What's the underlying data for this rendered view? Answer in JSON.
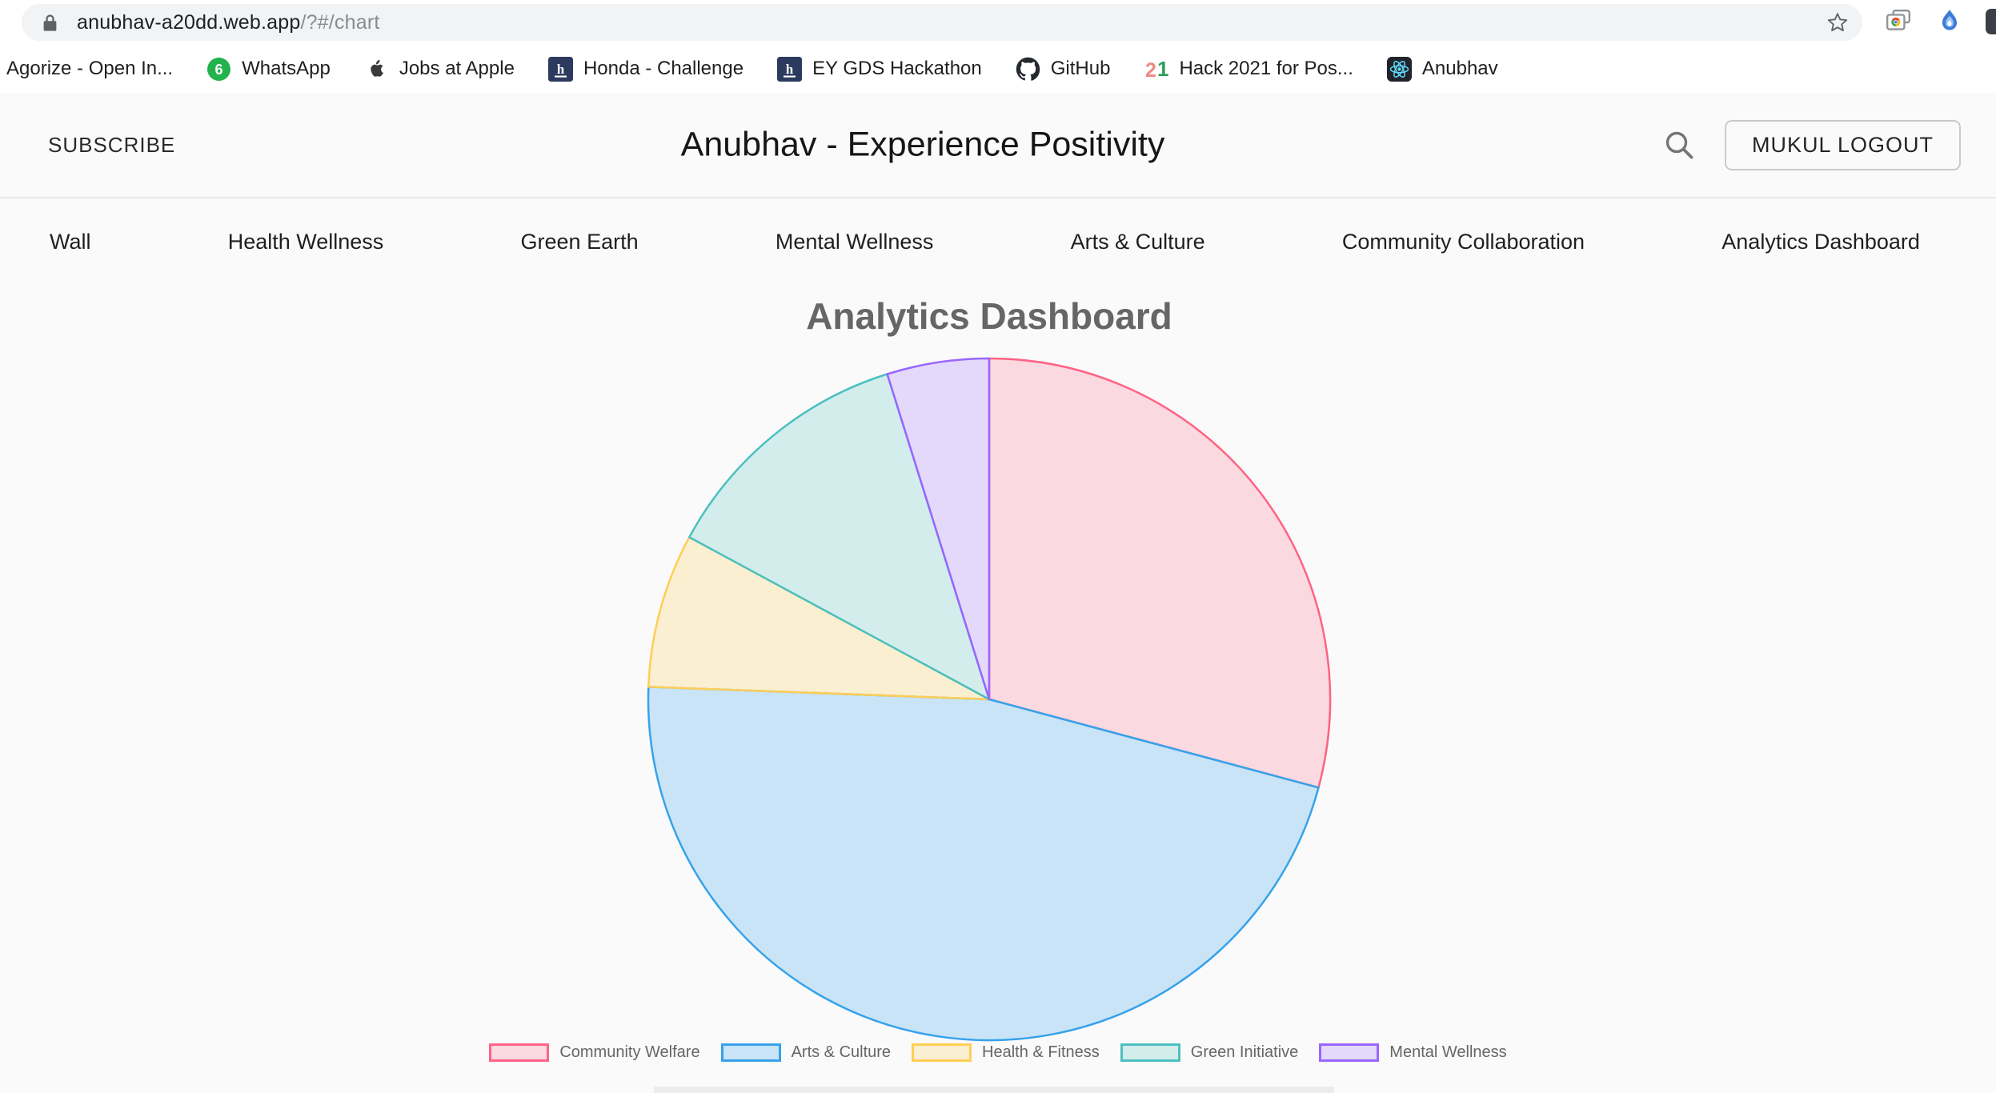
{
  "browser": {
    "url": {
      "host": "anubhav-a20dd.web.app",
      "path": "/?#/chart"
    },
    "omnibox_icons": [
      "lock-icon",
      "bookmark-star-icon"
    ],
    "toolbar_icons": [
      "tab-chrome-icon",
      "extension-flame-icon",
      "edge-partial-icon"
    ],
    "bookmarks": [
      {
        "label": "Agorize - Open In...",
        "icon": "none"
      },
      {
        "label": "WhatsApp",
        "icon": "whatsapp-badge"
      },
      {
        "label": "Jobs at Apple",
        "icon": "apple"
      },
      {
        "label": "Honda - Challenge",
        "icon": "hackerearth"
      },
      {
        "label": "EY GDS Hackathon",
        "icon": "hackerearth"
      },
      {
        "label": "GitHub",
        "icon": "github"
      },
      {
        "label": "Hack 2021 for Pos...",
        "icon": "hack21"
      },
      {
        "label": "Anubhav",
        "icon": "react"
      }
    ]
  },
  "site": {
    "header": {
      "subscribe_label": "SUBSCRIBE",
      "title": "Anubhav - Experience Positivity",
      "search_icon": "search-icon",
      "logout_label": "MUKUL LOGOUT"
    },
    "nav": [
      "Wall",
      "Health Wellness",
      "Green Earth",
      "Mental Wellness",
      "Arts & Culture",
      "Community Collaboration",
      "Analytics Dashboard"
    ],
    "heading": "Analytics Dashboard"
  },
  "chart_data": {
    "type": "pie",
    "title": "Analytics Dashboard",
    "legend_position": "bottom",
    "rotation_start": "12-o-clock, clockwise",
    "segments": [
      {
        "label": "Community Welfare",
        "pct": 29.2,
        "start_deg": 0,
        "end_deg": 105,
        "fill": "rgba(255,99,132,0.22)",
        "stroke": "#FF6384"
      },
      {
        "label": "Arts & Culture",
        "pct": 46.4,
        "start_deg": 105,
        "end_deg": 272.1,
        "fill": "rgba(54,162,235,0.25)",
        "stroke": "#36A2EB"
      },
      {
        "label": "Health & Fitness",
        "pct": 7.3,
        "start_deg": 272.1,
        "end_deg": 298.4,
        "fill": "rgba(255,206,86,0.25)",
        "stroke": "#FFCE56"
      },
      {
        "label": "Green Initiative",
        "pct": 12.3,
        "start_deg": 298.4,
        "end_deg": 342.6,
        "fill": "rgba(75,192,192,0.22)",
        "stroke": "#4BC0C0"
      },
      {
        "label": "Mental Wellness",
        "pct": 4.8,
        "start_deg": 342.6,
        "end_deg": 360,
        "fill": "rgba(153,102,255,0.22)",
        "stroke": "#9966FF"
      }
    ]
  }
}
